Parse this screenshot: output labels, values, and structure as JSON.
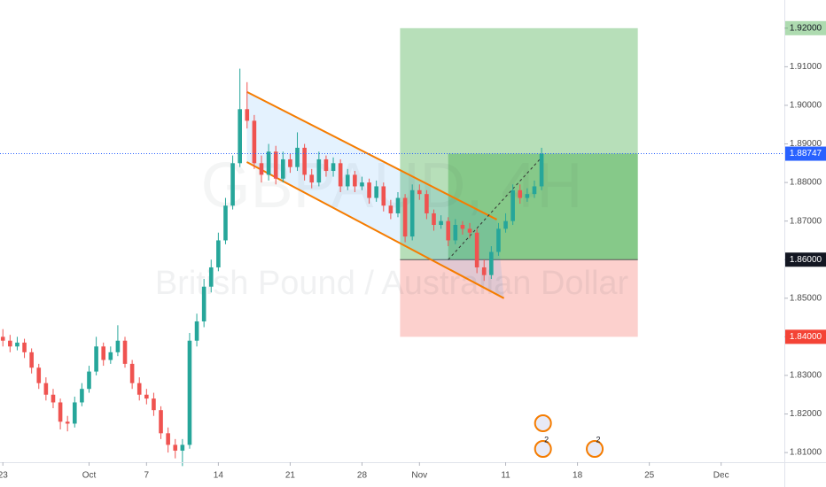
{
  "chart_data": {
    "type": "candlestick",
    "watermark": "GBPAUD, 4H",
    "subtitle": "British Pound / Australian Dollar",
    "up_color": "#26a69a",
    "down_color": "#ef5350",
    "xlim": [
      -0.2,
      54.4
    ],
    "ylim": [
      1.8075,
      1.9273
    ],
    "xticks": [
      {
        "value": 0,
        "label": "23"
      },
      {
        "value": 6,
        "label": "Oct"
      },
      {
        "value": 10,
        "label": "7"
      },
      {
        "value": 15,
        "label": "14"
      },
      {
        "value": 20,
        "label": "21"
      },
      {
        "value": 25,
        "label": "28"
      },
      {
        "value": 29,
        "label": "Nov"
      },
      {
        "value": 35,
        "label": "11"
      },
      {
        "value": 40,
        "label": "18"
      },
      {
        "value": 45,
        "label": "25"
      },
      {
        "value": 50,
        "label": "Dec"
      }
    ],
    "yticks": [
      {
        "value": 1.81,
        "label": "1.81000"
      },
      {
        "value": 1.82,
        "label": "1.82000"
      },
      {
        "value": 1.83,
        "label": "1.83000"
      },
      {
        "value": 1.84,
        "label": "1.84000"
      },
      {
        "value": 1.85,
        "label": "1.85000"
      },
      {
        "value": 1.86,
        "label": "1.86000"
      },
      {
        "value": 1.87,
        "label": "1.87000"
      },
      {
        "value": 1.88,
        "label": "1.88000"
      },
      {
        "value": 1.89,
        "label": "1.89000"
      },
      {
        "value": 1.9,
        "label": "1.90000"
      },
      {
        "value": 1.91,
        "label": "1.91000"
      },
      {
        "value": 1.92,
        "label": "1.92000"
      }
    ],
    "candles": {
      "x": [
        0,
        0.5,
        1,
        1.5,
        2,
        2.5,
        3,
        3.5,
        4,
        4.5,
        5,
        5.5,
        6,
        6.5,
        7,
        7.5,
        8,
        8.5,
        9,
        9.5,
        10,
        10.5,
        11,
        11.5,
        12,
        12.5,
        13,
        13.5,
        14,
        14.5,
        15,
        15.5,
        16,
        16.5,
        17,
        17.5,
        18,
        18.5,
        19,
        19.5,
        20,
        20.5,
        21,
        21.5,
        22,
        22.5,
        23,
        23.5,
        24,
        24.5,
        25,
        25.5,
        26,
        26.5,
        27,
        27.5,
        28,
        28.5,
        29,
        29.5,
        30,
        30.5,
        31,
        31.5,
        32,
        32.5,
        33,
        33.5,
        34,
        34.5,
        35,
        35.5,
        36,
        36.5,
        37,
        37.5
      ],
      "open": [
        1.84,
        1.839,
        1.8375,
        1.8385,
        1.836,
        1.832,
        1.828,
        1.825,
        1.823,
        1.818,
        1.8175,
        1.823,
        1.8265,
        1.831,
        1.8375,
        1.834,
        1.836,
        1.839,
        1.833,
        1.828,
        1.825,
        1.824,
        1.821,
        1.815,
        1.812,
        1.8105,
        1.812,
        1.839,
        1.844,
        1.853,
        1.858,
        1.865,
        1.874,
        1.885,
        1.899,
        1.896,
        1.885,
        1.882,
        1.888,
        1.881,
        1.886,
        1.884,
        1.889,
        1.882,
        1.88,
        1.886,
        1.883,
        1.885,
        1.879,
        1.882,
        1.879,
        1.88,
        1.876,
        1.879,
        1.874,
        1.872,
        1.876,
        1.866,
        1.878,
        1.877,
        1.872,
        1.869,
        1.87,
        1.865,
        1.869,
        1.868,
        1.867,
        1.858,
        1.856,
        1.862,
        1.868,
        1.87,
        1.878,
        1.876,
        1.877,
        1.879
      ],
      "high": [
        1.842,
        1.8405,
        1.84,
        1.8395,
        1.837,
        1.833,
        1.8295,
        1.8265,
        1.824,
        1.8195,
        1.8245,
        1.828,
        1.8325,
        1.84,
        1.8385,
        1.8375,
        1.843,
        1.84,
        1.834,
        1.8295,
        1.8265,
        1.8255,
        1.822,
        1.8165,
        1.8135,
        1.8135,
        1.841,
        1.846,
        1.855,
        1.86,
        1.867,
        1.876,
        1.887,
        1.9095,
        1.906,
        1.8975,
        1.887,
        1.89,
        1.8895,
        1.888,
        1.8875,
        1.893,
        1.89,
        1.8835,
        1.888,
        1.887,
        1.8865,
        1.886,
        1.8835,
        1.883,
        1.8815,
        1.881,
        1.8805,
        1.88,
        1.8755,
        1.8775,
        1.877,
        1.8795,
        1.8795,
        1.878,
        1.873,
        1.8715,
        1.871,
        1.8705,
        1.87,
        1.8695,
        1.868,
        1.86,
        1.8635,
        1.8695,
        1.872,
        1.8795,
        1.8795,
        1.8785,
        1.8805,
        1.889
      ],
      "low": [
        1.8375,
        1.836,
        1.8365,
        1.8345,
        1.8305,
        1.8265,
        1.8235,
        1.8215,
        1.816,
        1.8155,
        1.8165,
        1.822,
        1.8255,
        1.83,
        1.8325,
        1.833,
        1.835,
        1.832,
        1.8265,
        1.8235,
        1.8225,
        1.8195,
        1.8135,
        1.81,
        1.8085,
        1.8065,
        1.811,
        1.8375,
        1.8425,
        1.8515,
        1.857,
        1.864,
        1.873,
        1.884,
        1.894,
        1.8835,
        1.88,
        1.8805,
        1.8795,
        1.88,
        1.8825,
        1.883,
        1.8805,
        1.8785,
        1.879,
        1.8815,
        1.8815,
        1.8775,
        1.878,
        1.8775,
        1.878,
        1.8745,
        1.875,
        1.8725,
        1.8705,
        1.871,
        1.8645,
        1.865,
        1.8755,
        1.8705,
        1.8675,
        1.868,
        1.8635,
        1.864,
        1.8665,
        1.8655,
        1.8565,
        1.8545,
        1.855,
        1.861,
        1.867,
        1.869,
        1.8745,
        1.875,
        1.876,
        1.878
      ],
      "close": [
        1.839,
        1.8375,
        1.8385,
        1.836,
        1.832,
        1.828,
        1.825,
        1.823,
        1.818,
        1.8175,
        1.823,
        1.8265,
        1.831,
        1.8375,
        1.834,
        1.836,
        1.839,
        1.833,
        1.828,
        1.825,
        1.824,
        1.821,
        1.815,
        1.812,
        1.8105,
        1.812,
        1.839,
        1.844,
        1.853,
        1.858,
        1.865,
        1.874,
        1.885,
        1.899,
        1.896,
        1.885,
        1.882,
        1.888,
        1.881,
        1.886,
        1.884,
        1.889,
        1.882,
        1.88,
        1.886,
        1.883,
        1.885,
        1.879,
        1.882,
        1.879,
        1.88,
        1.876,
        1.879,
        1.874,
        1.872,
        1.876,
        1.866,
        1.878,
        1.877,
        1.872,
        1.869,
        1.87,
        1.865,
        1.869,
        1.868,
        1.867,
        1.858,
        1.856,
        1.862,
        1.868,
        1.87,
        1.878,
        1.876,
        1.877,
        1.879,
        1.88747
      ]
    },
    "last_price": 1.88747,
    "last_price_color": "#2962ff",
    "position": {
      "x_start": 27.65,
      "x_end": 44.2,
      "entry": 1.86,
      "target": 1.92,
      "stop": 1.84,
      "target_color": "#4caf50",
      "stop_color": "#f44336",
      "entry_color": "#131722"
    },
    "channel": {
      "color": "#f57c00",
      "upper": {
        "x": [
          16.98,
          34.38
        ],
        "y": [
          1.9035,
          1.8704
        ]
      },
      "lower": {
        "x": [
          16.98,
          34.88
        ],
        "y": [
          1.8853,
          1.85
        ]
      }
    },
    "trend_line": {
      "x": [
        31.0,
        37.5
      ],
      "y": [
        1.86,
        1.8865
      ]
    },
    "events": [
      {
        "x": 37.6,
        "label": "2"
      },
      {
        "x": 41.2,
        "label": "2"
      }
    ]
  }
}
